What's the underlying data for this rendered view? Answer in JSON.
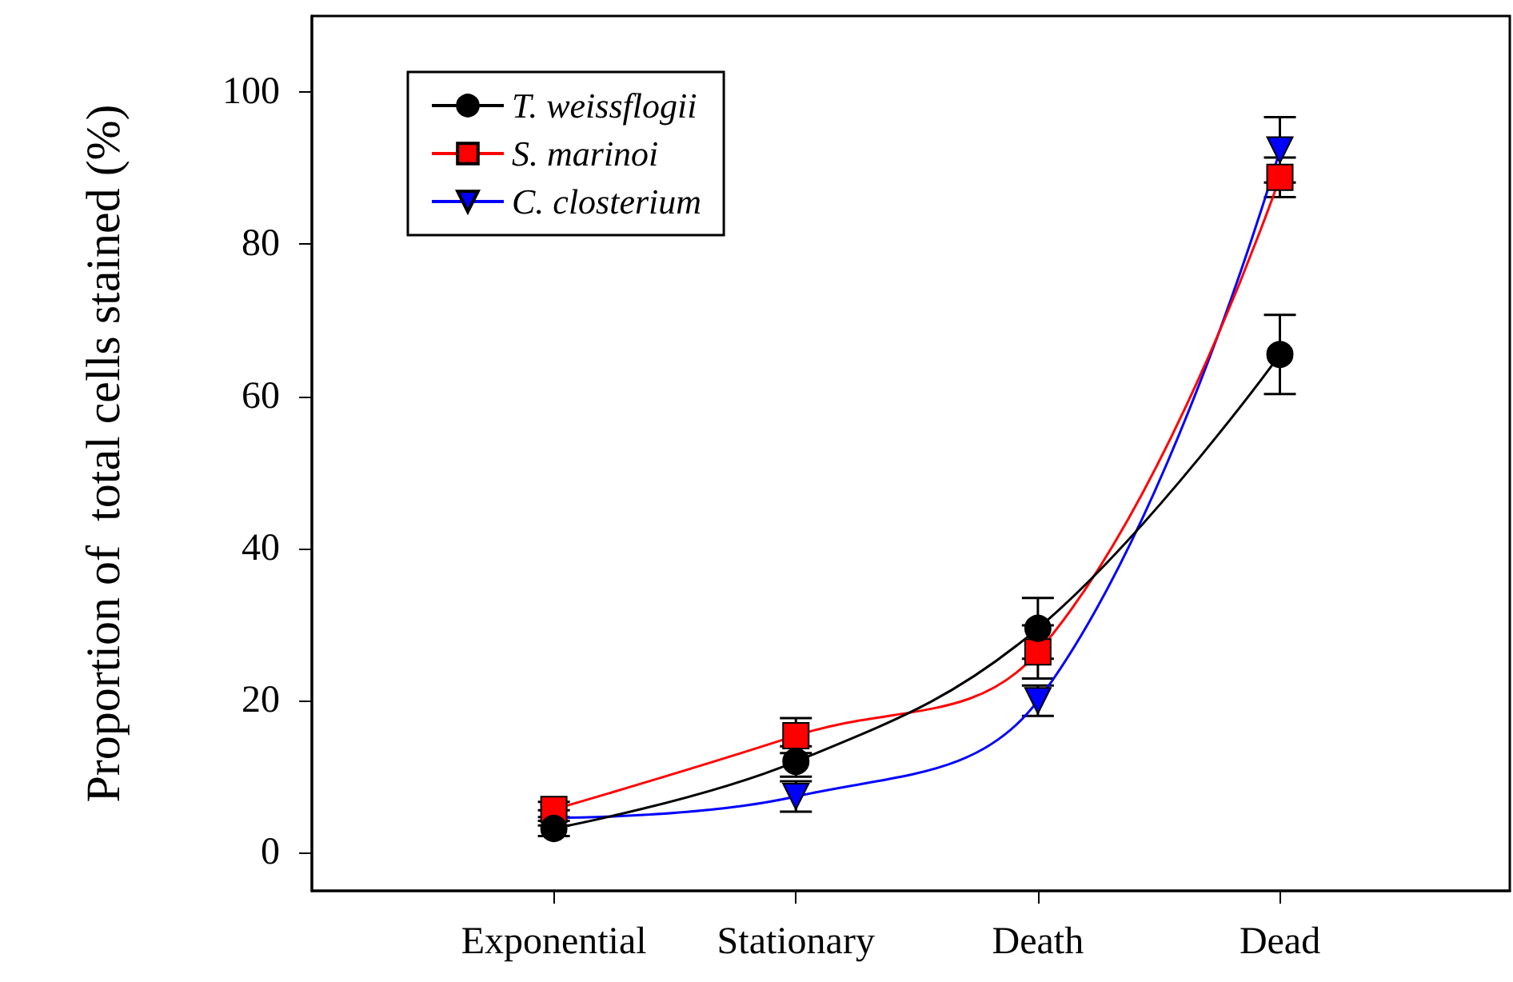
{
  "chart_data": {
    "type": "line",
    "ylabel": "Proportion of  total cells stained (%)",
    "categories": [
      "Exponential",
      "Stationary",
      "Death",
      "Dead"
    ],
    "ylim": [
      -5,
      110
    ],
    "yticks": [
      0,
      20,
      40,
      60,
      80,
      100
    ],
    "grid": false,
    "legend": "top left",
    "series": [
      {
        "name": "T. weissflogii",
        "color": "#000000",
        "marker": "circle",
        "values": [
          3.2,
          12,
          29.5,
          65.5
        ],
        "errors": [
          1,
          2,
          4,
          5.2
        ]
      },
      {
        "name": "S. marinoi",
        "color": "#ff0000",
        "marker": "square",
        "values": [
          5.7,
          15.4,
          26.4,
          88.8
        ],
        "errors": [
          1,
          2.3,
          3.5,
          2.6
        ]
      },
      {
        "name": "C. closterium",
        "color": "#0000ff",
        "marker": "triangle",
        "values": [
          4.6,
          7.4,
          20,
          92.4
        ],
        "errors": [
          1,
          2,
          2,
          4.3
        ]
      }
    ]
  }
}
